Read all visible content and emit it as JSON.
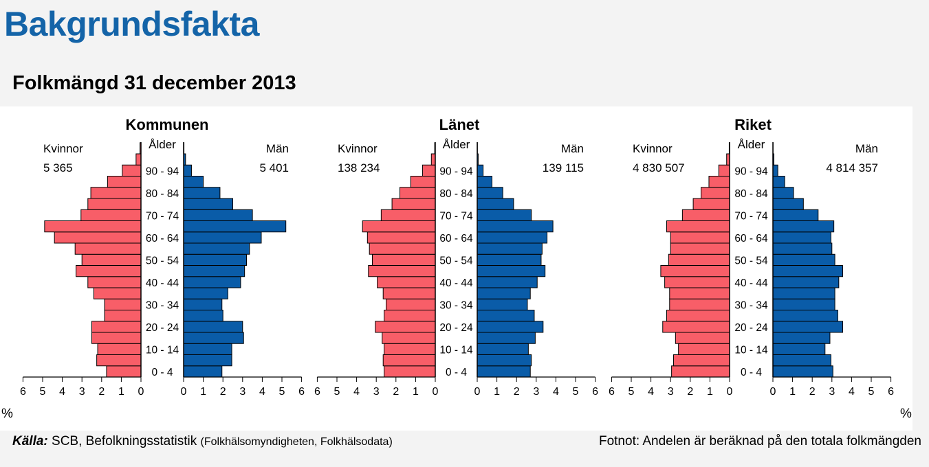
{
  "header": {
    "title": "Bakgrundsfakta",
    "subtitle": "Folkmängd 31 december 2013"
  },
  "axis_unit": "%",
  "age_label": "Ålder",
  "source": {
    "label": "Källa:",
    "text": "SCB, Befolkningsstatistik",
    "detail": "(Folkhälsomyndigheten, Folkhälsodata)"
  },
  "footnote": "Fotnot: Andelen är beräknad på den totala folkmängden",
  "colors": {
    "women": "#f85e68",
    "men": "#0a5ca8"
  },
  "chart_data": [
    {
      "type": "bar",
      "title": "Kommunen",
      "women_label": "Kvinnor",
      "men_label": "Män",
      "women_total": "5 365",
      "men_total": "5 401",
      "age_groups": [
        "0 - 4",
        "5 - 9",
        "10 - 14",
        "15 - 19",
        "20 - 24",
        "25 - 29",
        "30 - 34",
        "35 - 39",
        "40 - 44",
        "45 - 49",
        "50 - 54",
        "55 - 59",
        "60 - 64",
        "65 - 69",
        "70 - 74",
        "75 - 79",
        "80 - 84",
        "85 - 89",
        "90 - 94",
        "95+",
        "100+"
      ],
      "age_tick_labels": [
        "0 - 4",
        "10 - 14",
        "20 - 24",
        "30 - 34",
        "40 - 44",
        "50 - 54",
        "60 - 64",
        "70 - 74",
        "80 - 84",
        "90 - 94"
      ],
      "series": [
        {
          "name": "Kvinnor",
          "values": [
            1.75,
            2.25,
            2.2,
            2.5,
            2.5,
            1.85,
            1.85,
            2.4,
            2.7,
            3.3,
            3.0,
            3.35,
            4.4,
            4.9,
            3.05,
            2.7,
            2.55,
            1.7,
            0.95,
            0.25,
            0.05
          ]
        },
        {
          "name": "Män",
          "values": [
            1.95,
            2.45,
            2.45,
            3.05,
            3.0,
            2.0,
            1.95,
            2.25,
            2.9,
            3.1,
            3.2,
            3.35,
            3.95,
            5.2,
            3.5,
            2.5,
            1.85,
            1.0,
            0.4,
            0.1,
            0.02
          ]
        }
      ],
      "xticks": [
        0,
        1,
        2,
        3,
        4,
        5,
        6
      ],
      "xlim": [
        0,
        6
      ]
    },
    {
      "type": "bar",
      "title": "Länet",
      "women_label": "Kvinnor",
      "men_label": "Män",
      "women_total": "138 234",
      "men_total": "139 115",
      "age_groups": [
        "0 - 4",
        "5 - 9",
        "10 - 14",
        "15 - 19",
        "20 - 24",
        "25 - 29",
        "30 - 34",
        "35 - 39",
        "40 - 44",
        "45 - 49",
        "50 - 54",
        "55 - 59",
        "60 - 64",
        "65 - 69",
        "70 - 74",
        "75 - 79",
        "80 - 84",
        "85 - 89",
        "90 - 94",
        "95+",
        "100+"
      ],
      "age_tick_labels": [
        "0 - 4",
        "10 - 14",
        "20 - 24",
        "30 - 34",
        "40 - 44",
        "50 - 54",
        "60 - 64",
        "70 - 74",
        "80 - 84",
        "90 - 94"
      ],
      "series": [
        {
          "name": "Kvinnor",
          "values": [
            2.6,
            2.65,
            2.6,
            2.7,
            3.05,
            2.6,
            2.5,
            2.65,
            2.95,
            3.4,
            3.2,
            3.35,
            3.45,
            3.7,
            2.75,
            2.2,
            1.8,
            1.25,
            0.65,
            0.2,
            0.03
          ]
        },
        {
          "name": "Män",
          "values": [
            2.7,
            2.75,
            2.6,
            2.95,
            3.35,
            2.9,
            2.55,
            2.7,
            3.05,
            3.45,
            3.25,
            3.3,
            3.55,
            3.85,
            2.75,
            1.85,
            1.3,
            0.75,
            0.3,
            0.05,
            0.01
          ]
        }
      ],
      "xticks": [
        0,
        1,
        2,
        3,
        4,
        5,
        6
      ],
      "xlim": [
        0,
        6
      ]
    },
    {
      "type": "bar",
      "title": "Riket",
      "women_label": "Kvinnor",
      "men_label": "Män",
      "women_total": "4 830 507",
      "men_total": "4 814 357",
      "age_groups": [
        "0 - 4",
        "5 - 9",
        "10 - 14",
        "15 - 19",
        "20 - 24",
        "25 - 29",
        "30 - 34",
        "35 - 39",
        "40 - 44",
        "45 - 49",
        "50 - 54",
        "55 - 59",
        "60 - 64",
        "65 - 69",
        "70 - 74",
        "75 - 79",
        "80 - 84",
        "85 - 89",
        "90 - 94",
        "95+",
        "100+"
      ],
      "age_tick_labels": [
        "0 - 4",
        "10 - 14",
        "20 - 24",
        "30 - 34",
        "40 - 44",
        "50 - 54",
        "60 - 64",
        "70 - 74",
        "80 - 84",
        "90 - 94"
      ],
      "series": [
        {
          "name": "Kvinnor",
          "values": [
            2.95,
            2.85,
            2.6,
            2.75,
            3.4,
            3.2,
            3.05,
            3.05,
            3.3,
            3.5,
            3.1,
            3.0,
            3.0,
            3.2,
            2.4,
            1.85,
            1.45,
            1.05,
            0.55,
            0.15,
            0.02
          ]
        },
        {
          "name": "Män",
          "values": [
            3.05,
            2.95,
            2.65,
            2.9,
            3.55,
            3.3,
            3.15,
            3.15,
            3.35,
            3.55,
            3.15,
            3.0,
            2.95,
            3.1,
            2.3,
            1.55,
            1.05,
            0.6,
            0.25,
            0.05,
            0.01
          ]
        }
      ],
      "xticks": [
        0,
        1,
        2,
        3,
        4,
        5,
        6
      ],
      "xlim": [
        0,
        6
      ]
    }
  ]
}
